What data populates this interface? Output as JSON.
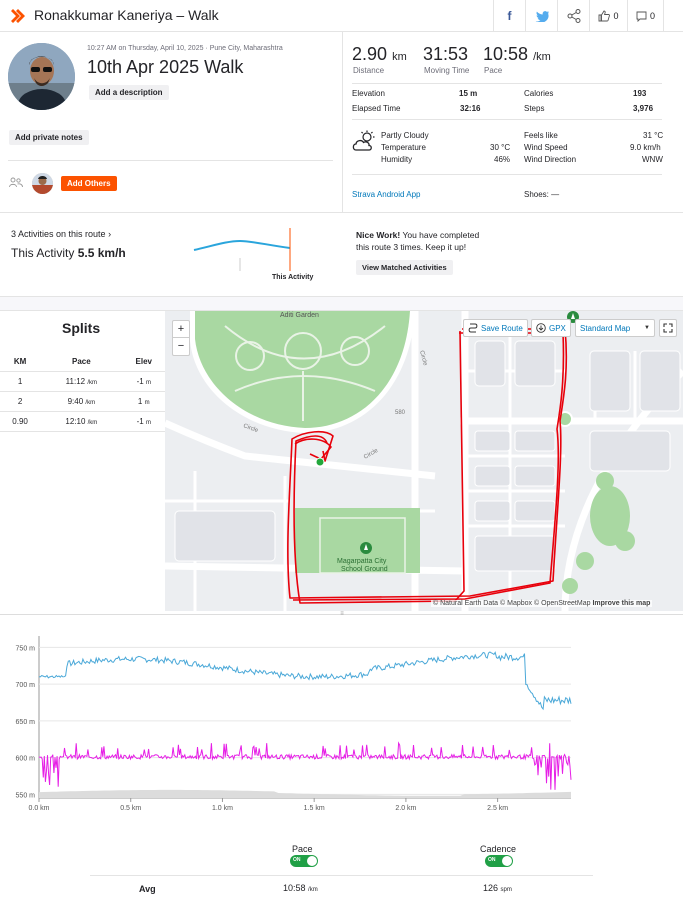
{
  "header": {
    "title": "Ronakkumar Kaneriya – Walk",
    "kudos_count": "0",
    "comment_count": "0"
  },
  "activity": {
    "meta": "10:27 AM on Thursday, April 10, 2025 · Pune City, Maharashtra",
    "title": "10th Apr 2025 Walk",
    "add_description": "Add a description",
    "add_private_notes": "Add private notes",
    "add_others": "Add Others"
  },
  "stats": {
    "distance_value": "2.90",
    "distance_unit": "km",
    "distance_label": "Distance",
    "moving_time_value": "31:53",
    "moving_time_label": "Moving Time",
    "pace_value": "10:58",
    "pace_unit": "/km",
    "pace_label": "Pace",
    "elevation_label": "Elevation",
    "elevation_value": "15 m",
    "calories_label": "Calories",
    "calories_value": "193",
    "elapsed_label": "Elapsed Time",
    "elapsed_value": "32:16",
    "steps_label": "Steps",
    "steps_value": "3,976"
  },
  "weather": {
    "condition": "Partly Cloudy",
    "temperature_label": "Temperature",
    "temperature_value": "30 °C",
    "humidity_label": "Humidity",
    "humidity_value": "46%",
    "feels_like_label": "Feels like",
    "feels_like_value": "31 °C",
    "wind_speed_label": "Wind Speed",
    "wind_speed_value": "9.0 km/h",
    "wind_dir_label": "Wind Direction",
    "wind_dir_value": "WNW"
  },
  "device": {
    "app": "Strava Android App",
    "shoes": "Shoes: —"
  },
  "route": {
    "activities_link": "3 Activities on this route",
    "this_activity_label": "This Activity",
    "this_activity_value": "5.5 km/h",
    "chart_marker_label": "This Activity",
    "nice_work": "Nice Work!",
    "message_line1": "You have completed",
    "message_line2": "this route 3 times. Keep it up!",
    "view_matched": "View Matched Activities"
  },
  "splits": {
    "title": "Splits",
    "headers": [
      "KM",
      "Pace",
      "Elev"
    ],
    "rows": [
      {
        "km": "1",
        "pace": "11:12",
        "pace_unit": "/km",
        "elev": "-1",
        "elev_unit": "m"
      },
      {
        "km": "2",
        "pace": "9:40",
        "pace_unit": "/km",
        "elev": "1",
        "elev_unit": "m"
      },
      {
        "km": "0.90",
        "pace": "12:10",
        "pace_unit": "/km",
        "elev": "-1",
        "elev_unit": "m"
      }
    ]
  },
  "map": {
    "save_route": "Save Route",
    "gpx": "GPX",
    "style": "Standard Map",
    "zoom_in": "+",
    "zoom_out": "−",
    "label_park": "Aditi Garden",
    "label_circle1": "Circle",
    "label_circle2": "Circle",
    "label_circle3": "Circle",
    "label_school": "Magarpatta City\nSchool Ground",
    "label_school_line1": "Magarpatta City",
    "label_school_line2": "School Ground",
    "label_580": "580",
    "attribution": "© Natural Earth Data © Mapbox © OpenStreetMap",
    "improve": "Improve this map",
    "route_color": "#e8000b"
  },
  "chart_data": {
    "type": "line",
    "x_ticks": [
      "0.0 km",
      "0.5 km",
      "1.0 km",
      "1.5 km",
      "2.0 km",
      "2.5 km"
    ],
    "y_ticks": [
      "750 m",
      "700 m",
      "650 m",
      "600 m",
      "550 m"
    ],
    "ylim": [
      545,
      760
    ],
    "xlim": [
      0,
      2.9
    ],
    "series": [
      {
        "name": "Pace",
        "color": "#4aa8d8"
      },
      {
        "name": "Cadence",
        "color": "#e61ee6"
      }
    ]
  },
  "summary": {
    "pace_label": "Pace",
    "pace_toggle": "ON",
    "cadence_label": "Cadence",
    "cadence_toggle": "ON",
    "avg_label": "Avg",
    "avg_pace": "10:58",
    "avg_pace_unit": "/km",
    "avg_cadence": "126",
    "avg_cadence_unit": "spm"
  },
  "colors": {
    "accent": "#fc5200",
    "link": "#0078ba"
  }
}
